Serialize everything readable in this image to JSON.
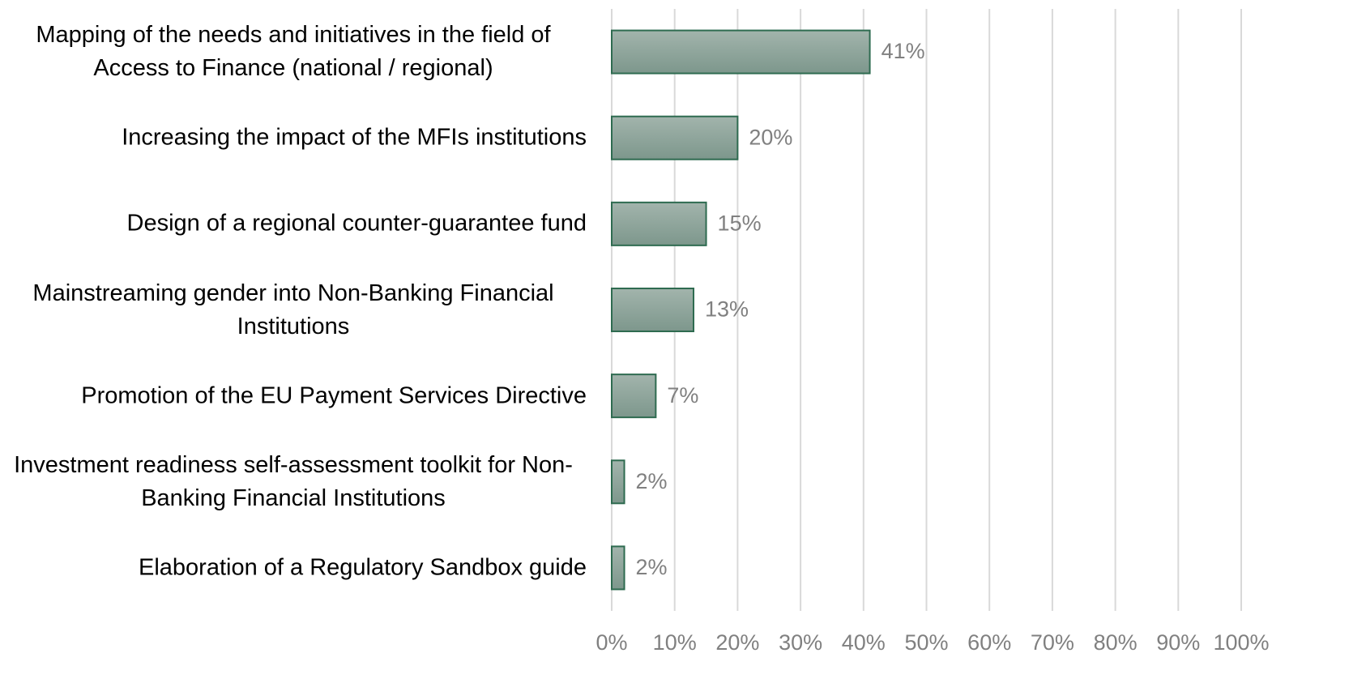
{
  "chart_data": {
    "type": "barh",
    "categories": [
      "Mapping of the needs and initiatives in the field of Access to Finance (national / regional)",
      "Increasing the impact of the MFIs institutions",
      "Design of a regional counter-guarantee fund",
      "Mainstreaming gender into Non-Banking Financial Institutions",
      "Promotion of the EU Payment Services Directive",
      "Investment readiness self-assessment toolkit for Non-Banking Financial Institutions",
      "Elaboration of a Regulatory Sandbox guide"
    ],
    "values": [
      41,
      20,
      15,
      13,
      7,
      2,
      2
    ],
    "value_labels": [
      "41%",
      "20%",
      "15%",
      "13%",
      "7%",
      "2%",
      "2%"
    ],
    "color": "#8ea59b",
    "xlim": [
      0,
      100
    ],
    "xticks": [
      {
        "value": 0,
        "label": "0%"
      },
      {
        "value": 10,
        "label": "10%"
      },
      {
        "value": 20,
        "label": "20%"
      },
      {
        "value": 30,
        "label": "30%"
      },
      {
        "value": 40,
        "label": "40%"
      },
      {
        "value": 50,
        "label": "50%"
      },
      {
        "value": 60,
        "label": "60%"
      },
      {
        "value": 70,
        "label": "70%"
      },
      {
        "value": 80,
        "label": "80%"
      },
      {
        "value": 90,
        "label": "90%"
      },
      {
        "value": 100,
        "label": "100%"
      }
    ],
    "grid": true
  }
}
